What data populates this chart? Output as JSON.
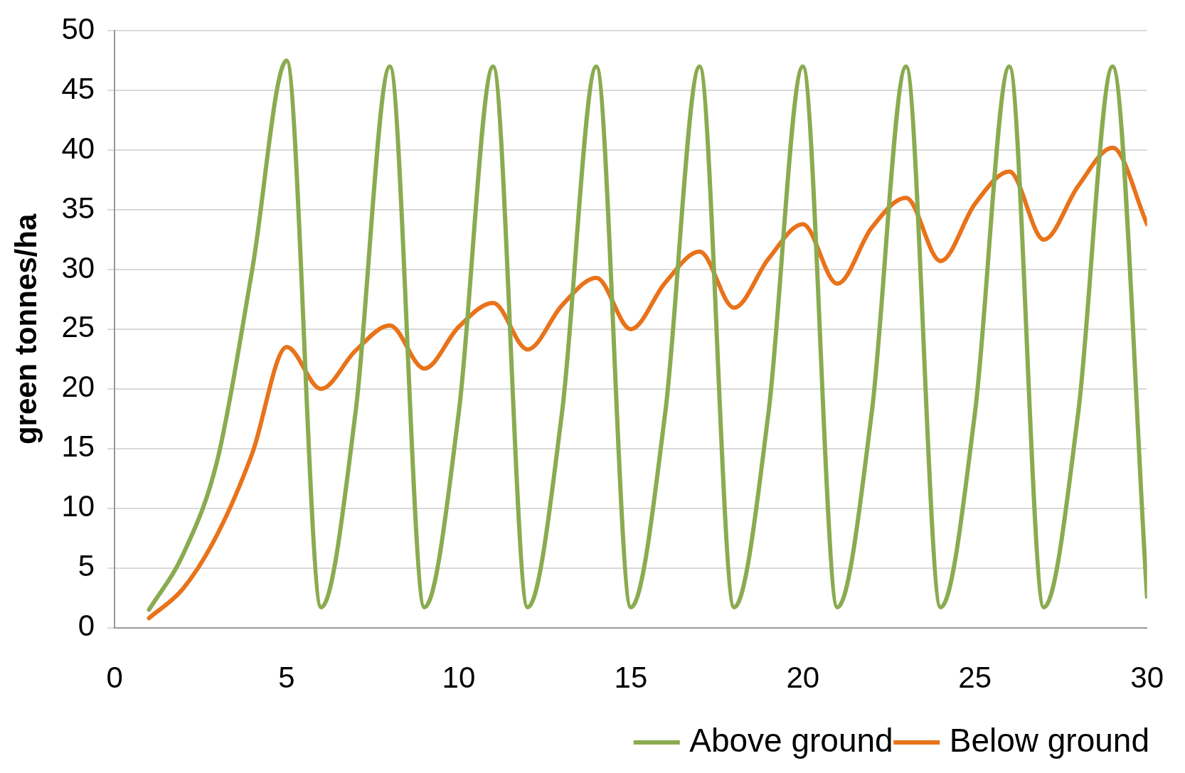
{
  "chart_data": {
    "type": "line",
    "ylabel": "green tonnes/ha",
    "x": [
      1,
      2,
      3,
      4,
      5,
      6,
      7,
      8,
      9,
      10,
      11,
      12,
      13,
      14,
      15,
      16,
      17,
      18,
      19,
      20,
      21,
      22,
      23,
      24,
      25,
      26,
      27,
      28,
      29,
      30
    ],
    "series": [
      {
        "name": "Above ground",
        "color": "#8aab50",
        "values": [
          1.5,
          6.2,
          14.2,
          30,
          47.5,
          1.7,
          18,
          47,
          1.7,
          18,
          47,
          1.7,
          18,
          47,
          1.7,
          18,
          47,
          1.7,
          18,
          47,
          1.7,
          18,
          47,
          1.7,
          18,
          47,
          1.7,
          18,
          47,
          2.6
        ]
      },
      {
        "name": "Below ground",
        "color": "#e8731a",
        "values": [
          0.8,
          3.3,
          7.9,
          14.6,
          23.5,
          20,
          23.2,
          25.3,
          21.7,
          25.2,
          27.2,
          23.3,
          27,
          29.3,
          25,
          28.9,
          31.5,
          26.8,
          30.9,
          33.8,
          28.8,
          33.5,
          36,
          30.7,
          35.5,
          38.2,
          32.5,
          37,
          40.2,
          33.8
        ]
      }
    ],
    "xlim": [
      0,
      30
    ],
    "xticks": [
      0,
      5,
      10,
      15,
      20,
      25,
      30
    ],
    "ylim": [
      0,
      50
    ],
    "yticks": [
      0,
      5,
      10,
      15,
      20,
      25,
      30,
      35,
      40,
      45,
      50
    ],
    "grid": "y",
    "legend": "bottom right",
    "marker": "none",
    "line_style": "solid"
  }
}
